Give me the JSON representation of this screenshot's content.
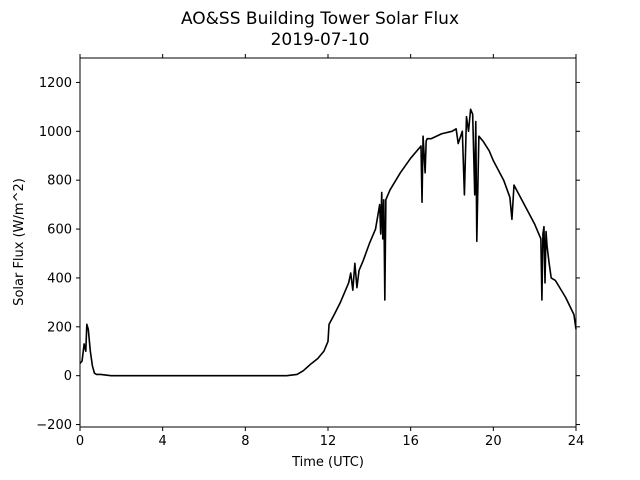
{
  "chart_data": {
    "type": "line",
    "title": "AO&SS Building Tower Solar Flux",
    "subtitle": "2019-07-10",
    "xlabel": "Time (UTC)",
    "ylabel": "Solar Flux (W/m^2)",
    "xlim": [
      0,
      24
    ],
    "ylim": [
      -210,
      1300
    ],
    "xticks": [
      0,
      4,
      8,
      12,
      16,
      20,
      24
    ],
    "yticks": [
      -200,
      0,
      200,
      400,
      600,
      800,
      1000,
      1200
    ],
    "grid": false,
    "legend": "none",
    "line_color": "#000000",
    "series": [
      {
        "x": [
          0.0,
          0.1,
          0.2,
          0.28,
          0.33,
          0.4,
          0.5,
          0.6,
          0.7,
          0.8,
          1.0,
          1.5,
          2.0,
          3.0,
          4.0,
          6.0,
          8.0,
          9.0,
          10.0,
          10.5,
          10.8,
          11.0,
          11.2,
          11.5,
          11.8,
          12.0,
          12.05,
          12.3,
          12.6,
          12.9,
          13.0,
          13.1,
          13.2,
          13.3,
          13.4,
          13.5,
          13.7,
          14.0,
          14.3,
          14.5,
          14.55,
          14.6,
          14.65,
          14.7,
          14.75,
          14.8,
          15.0,
          15.5,
          16.0,
          16.5,
          16.55,
          16.6,
          16.7,
          16.75,
          16.8,
          17.0,
          17.5,
          18.0,
          18.2,
          18.3,
          18.5,
          18.6,
          18.7,
          18.8,
          18.9,
          19.0,
          19.1,
          19.15,
          19.2,
          19.3,
          19.5,
          19.8,
          20.0,
          20.5,
          20.8,
          20.9,
          21.0,
          21.5,
          22.0,
          22.3,
          22.35,
          22.4,
          22.45,
          22.5,
          22.55,
          22.6,
          22.7,
          22.8,
          23.0,
          23.5,
          23.9,
          24.0
        ],
        "y": [
          50,
          60,
          130,
          100,
          210,
          190,
          100,
          40,
          10,
          5,
          5,
          0,
          0,
          0,
          0,
          0,
          0,
          0,
          0,
          5,
          20,
          35,
          50,
          70,
          100,
          140,
          210,
          250,
          300,
          360,
          380,
          420,
          350,
          460,
          360,
          430,
          470,
          540,
          600,
          700,
          580,
          750,
          560,
          720,
          310,
          720,
          760,
          830,
          890,
          940,
          710,
          980,
          830,
          960,
          970,
          970,
          990,
          1000,
          1010,
          950,
          1000,
          740,
          1060,
          1000,
          1090,
          1070,
          740,
          1040,
          550,
          980,
          960,
          920,
          880,
          800,
          730,
          640,
          780,
          700,
          620,
          560,
          310,
          580,
          610,
          380,
          590,
          530,
          460,
          400,
          390,
          320,
          250,
          190
        ]
      }
    ]
  }
}
